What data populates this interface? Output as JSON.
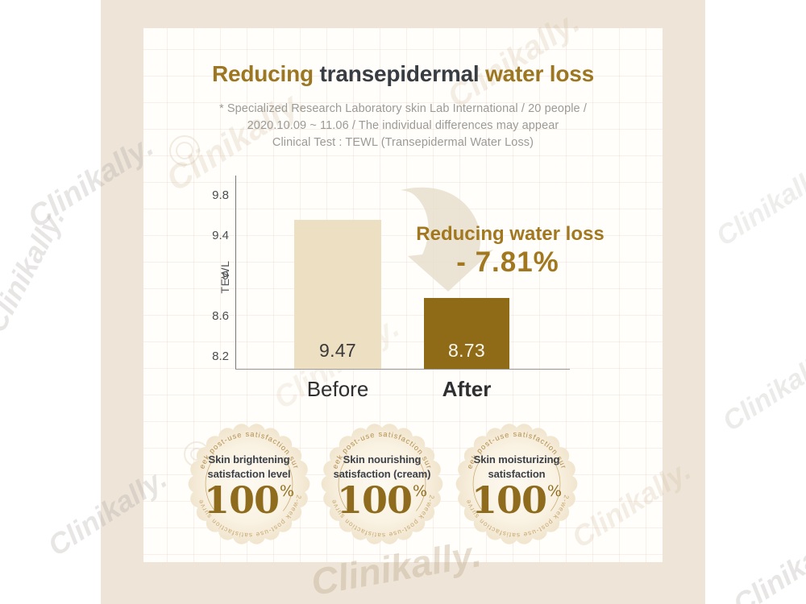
{
  "brand": {
    "watermark": "Clinikally."
  },
  "title": {
    "part1": "Reducing ",
    "part2": "transepidermal ",
    "part3": "water loss"
  },
  "subtitle": {
    "line1": "* Specialized Research Laboratory skin Lab International / 20 people /",
    "line2": "2020.10.09 ~ 11.06 / The individual differences may appear",
    "line3": "Clinical Test : TEWL (Transepidermal Water Loss)"
  },
  "chart_data": {
    "type": "bar",
    "title": "Reducing transepidermal water loss",
    "xlabel": "",
    "ylabel": "TEWL",
    "categories": [
      "Before",
      "After"
    ],
    "values": [
      9.47,
      8.73
    ],
    "value_labels": [
      "9.47",
      "8.73"
    ],
    "yticks": [
      9.8,
      9.4,
      9,
      8.6,
      8.2
    ],
    "ytick_labels": [
      "9.8",
      "9.4",
      "9",
      "8.6",
      "8.2"
    ],
    "ylim": [
      8.05,
      9.95
    ],
    "grid": true,
    "legend": "none",
    "bar_colors": [
      "#eddfc1",
      "#8f6b17"
    ],
    "annotation": {
      "line1": "Reducing water loss",
      "line2": "- 7.81%"
    }
  },
  "badges": [
    {
      "curved_text": "2-week post-use satisfaction survey",
      "line1": "Skin brightening",
      "line2": "satisfaction level",
      "value": "100",
      "unit": "%"
    },
    {
      "curved_text": "2-week post-use satisfaction survey",
      "line1": "Skin nourishing",
      "line2": "satisfaction (cream)",
      "value": "100",
      "unit": "%"
    },
    {
      "curved_text": "2-week post-use satisfaction survey",
      "line1": "Skin moisturizing",
      "line2": "satisfaction",
      "value": "100",
      "unit": "%"
    }
  ],
  "colors": {
    "accent_gold": "#9c7621",
    "dark_text": "#383c43",
    "muted_text": "#9d9a95",
    "bar_before": "#eddfc1",
    "bar_after": "#8f6b17",
    "frame_bg": "#eee5d8",
    "panel_bg": "#fffefb",
    "badge_bg": "#f8efdf",
    "arrow": "#e8decb"
  }
}
